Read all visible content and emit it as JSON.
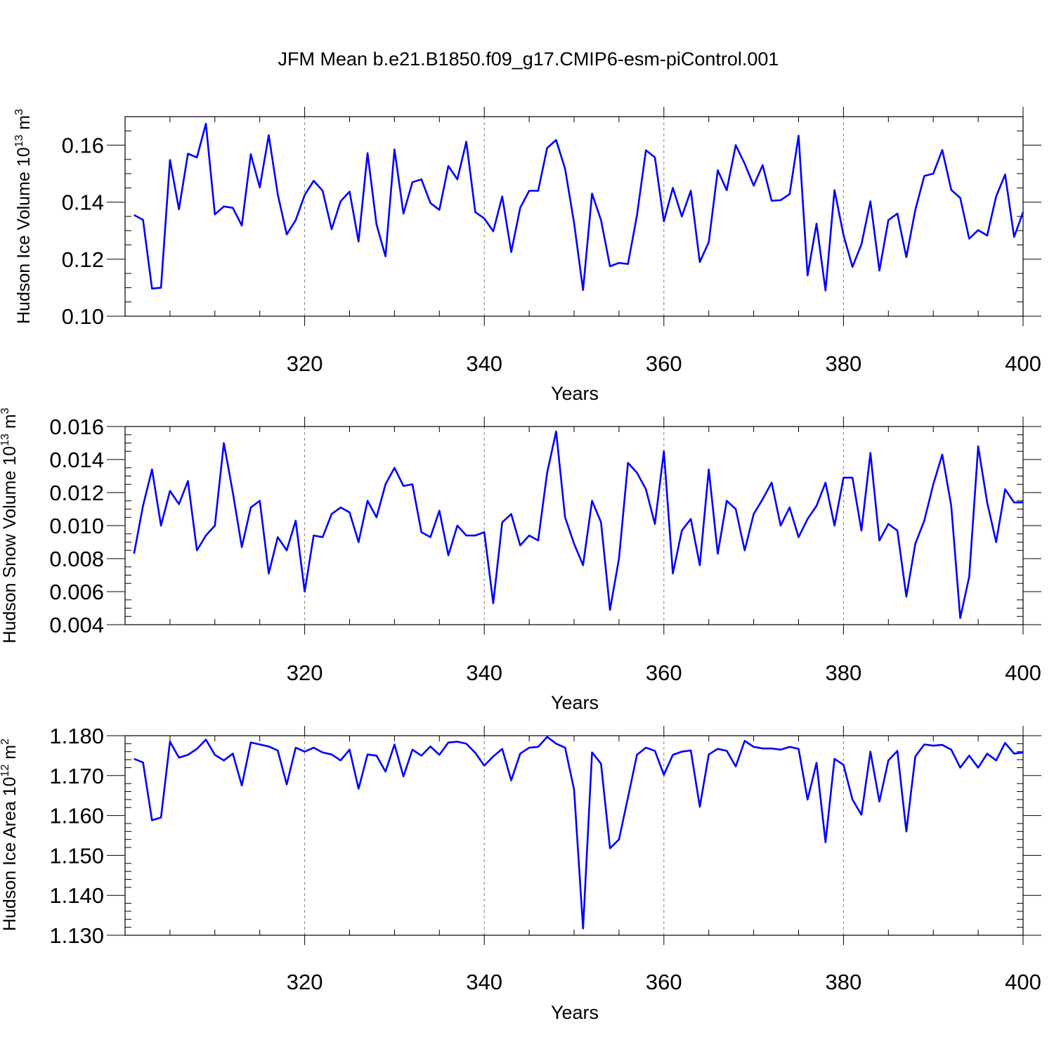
{
  "figure": {
    "title": "JFM Mean b.e21.B1850.f09_g17.CMIP6-esm-piControl.001"
  },
  "colors": {
    "line": "#0000ff",
    "axis": "#000000",
    "grid": "#808080"
  },
  "chart_data": [
    {
      "type": "line",
      "title": "",
      "xlabel": "Years",
      "ylabel": "Hudson Ice Volume 10",
      "ylabel_exp": "13",
      "ylabel_unit": " m",
      "ylabel_unit_exp": "3",
      "xlim": [
        300,
        400
      ],
      "ylim": [
        0.1,
        0.17
      ],
      "x_ticks": [
        320,
        340,
        360,
        380,
        400
      ],
      "x_tick_labels": [
        "320",
        "340",
        "360",
        "380",
        "400"
      ],
      "y_ticks": [
        0.1,
        0.12,
        0.14,
        0.16
      ],
      "y_tick_labels": [
        "0.10",
        "0.12",
        "0.14",
        "0.16"
      ],
      "y_minor_step": 0.005,
      "grid": "vertical dashed at major x ticks",
      "series": [
        {
          "name": "Hudson Ice Volume",
          "x_start": 301,
          "values": [
            0.1355,
            0.1338,
            0.1097,
            0.11,
            0.1548,
            0.1375,
            0.157,
            0.1557,
            0.1675,
            0.1357,
            0.1385,
            0.138,
            0.1318,
            0.1568,
            0.1452,
            0.1635,
            0.1428,
            0.1287,
            0.1337,
            0.1425,
            0.1475,
            0.144,
            0.1305,
            0.1403,
            0.1437,
            0.1262,
            0.1572,
            0.1322,
            0.121,
            0.1585,
            0.136,
            0.147,
            0.148,
            0.1397,
            0.1373,
            0.1527,
            0.148,
            0.1612,
            0.1365,
            0.1343,
            0.1298,
            0.142,
            0.1225,
            0.138,
            0.144,
            0.144,
            0.159,
            0.1618,
            0.1517,
            0.1327,
            0.1092,
            0.143,
            0.1337,
            0.1175,
            0.1187,
            0.1183,
            0.1353,
            0.1582,
            0.1557,
            0.1333,
            0.145,
            0.135,
            0.144,
            0.119,
            0.126,
            0.1512,
            0.1442,
            0.16,
            0.1535,
            0.1458,
            0.153,
            0.1405,
            0.1407,
            0.1428,
            0.1633,
            0.1143,
            0.1325,
            0.109,
            0.1442,
            0.1285,
            0.1173,
            0.1252,
            0.1403,
            0.116,
            0.1337,
            0.136,
            0.1207,
            0.1373,
            0.1492,
            0.15,
            0.1583,
            0.1443,
            0.1415,
            0.1272,
            0.1302,
            0.1283,
            0.142,
            0.1497,
            0.1278,
            0.1365
          ]
        }
      ]
    },
    {
      "type": "line",
      "title": "",
      "xlabel": "Years",
      "ylabel": "Hudson Snow Volume 10",
      "ylabel_exp": "13",
      "ylabel_unit": " m",
      "ylabel_unit_exp": "3",
      "xlim": [
        300,
        400
      ],
      "ylim": [
        0.004,
        0.016
      ],
      "x_ticks": [
        320,
        340,
        360,
        380,
        400
      ],
      "x_tick_labels": [
        "320",
        "340",
        "360",
        "380",
        "400"
      ],
      "y_ticks": [
        0.004,
        0.006,
        0.008,
        0.01,
        0.012,
        0.014,
        0.016
      ],
      "y_tick_labels": [
        "0.004",
        "0.006",
        "0.008",
        "0.010",
        "0.012",
        "0.014",
        "0.016"
      ],
      "y_minor_step": 0.0005,
      "grid": "vertical dashed at major x ticks",
      "series": [
        {
          "name": "Hudson Snow Volume",
          "x_start": 301,
          "values": [
            0.0083,
            0.0112,
            0.0134,
            0.01,
            0.0121,
            0.0113,
            0.0127,
            0.0085,
            0.0094,
            0.01,
            0.015,
            0.012,
            0.0087,
            0.0111,
            0.0115,
            0.0071,
            0.0093,
            0.0085,
            0.0103,
            0.006,
            0.0094,
            0.0093,
            0.0107,
            0.0111,
            0.0108,
            0.009,
            0.0115,
            0.0105,
            0.0125,
            0.0135,
            0.0124,
            0.0125,
            0.0096,
            0.0093,
            0.0109,
            0.0082,
            0.01,
            0.0094,
            0.0094,
            0.0096,
            0.0053,
            0.0102,
            0.0107,
            0.0088,
            0.0094,
            0.0091,
            0.0132,
            0.0157,
            0.0105,
            0.0089,
            0.0076,
            0.0115,
            0.0102,
            0.0049,
            0.008,
            0.0138,
            0.0132,
            0.0122,
            0.0101,
            0.0145,
            0.0071,
            0.0097,
            0.0104,
            0.0076,
            0.0134,
            0.0083,
            0.0115,
            0.011,
            0.0085,
            0.0107,
            0.0116,
            0.0126,
            0.01,
            0.0111,
            0.0093,
            0.0104,
            0.0112,
            0.0126,
            0.01,
            0.0129,
            0.0129,
            0.0097,
            0.0144,
            0.0091,
            0.0101,
            0.0097,
            0.0057,
            0.0089,
            0.0103,
            0.0125,
            0.0143,
            0.0112,
            0.0044,
            0.0069,
            0.0148,
            0.0114,
            0.009,
            0.0122,
            0.0114,
            0.0114
          ]
        }
      ]
    },
    {
      "type": "line",
      "title": "",
      "xlabel": "Years",
      "ylabel": "Hudson Ice Area 10",
      "ylabel_exp": "12",
      "ylabel_unit": " m",
      "ylabel_unit_exp": "2",
      "xlim": [
        300,
        400
      ],
      "ylim": [
        1.13,
        1.18
      ],
      "x_ticks": [
        320,
        340,
        360,
        380,
        400
      ],
      "x_tick_labels": [
        "320",
        "340",
        "360",
        "380",
        "400"
      ],
      "y_ticks": [
        1.13,
        1.14,
        1.15,
        1.16,
        1.17,
        1.18
      ],
      "y_tick_labels": [
        "1.130",
        "1.140",
        "1.150",
        "1.160",
        "1.170",
        "1.180"
      ],
      "y_minor_step": 0.002,
      "grid": "vertical dashed at major x ticks",
      "series": [
        {
          "name": "Hudson Ice Area",
          "x_start": 301,
          "values": [
            1.1742,
            1.1733,
            1.1588,
            1.1595,
            1.1785,
            1.1745,
            1.1752,
            1.1767,
            1.179,
            1.1752,
            1.1738,
            1.1755,
            1.1675,
            1.1783,
            1.1778,
            1.1773,
            1.1763,
            1.1678,
            1.177,
            1.176,
            1.177,
            1.1758,
            1.1753,
            1.1738,
            1.1765,
            1.1667,
            1.1753,
            1.175,
            1.171,
            1.1778,
            1.1698,
            1.1765,
            1.175,
            1.1773,
            1.1752,
            1.1783,
            1.1785,
            1.178,
            1.1757,
            1.1725,
            1.1748,
            1.1767,
            1.1688,
            1.1755,
            1.177,
            1.1772,
            1.1797,
            1.178,
            1.177,
            1.1665,
            1.1317,
            1.1758,
            1.173,
            1.1518,
            1.154,
            1.1645,
            1.1752,
            1.177,
            1.1762,
            1.1702,
            1.1752,
            1.176,
            1.1763,
            1.1622,
            1.1753,
            1.1767,
            1.1762,
            1.1723,
            1.1787,
            1.1772,
            1.1768,
            1.1768,
            1.1765,
            1.1772,
            1.1767,
            1.164,
            1.1732,
            1.1533,
            1.1742,
            1.1727,
            1.164,
            1.1602,
            1.176,
            1.1635,
            1.1738,
            1.1762,
            1.156,
            1.1748,
            1.1778,
            1.1775,
            1.1777,
            1.1765,
            1.172,
            1.175,
            1.172,
            1.1755,
            1.1738,
            1.1782,
            1.1755,
            1.1758
          ]
        }
      ]
    }
  ]
}
